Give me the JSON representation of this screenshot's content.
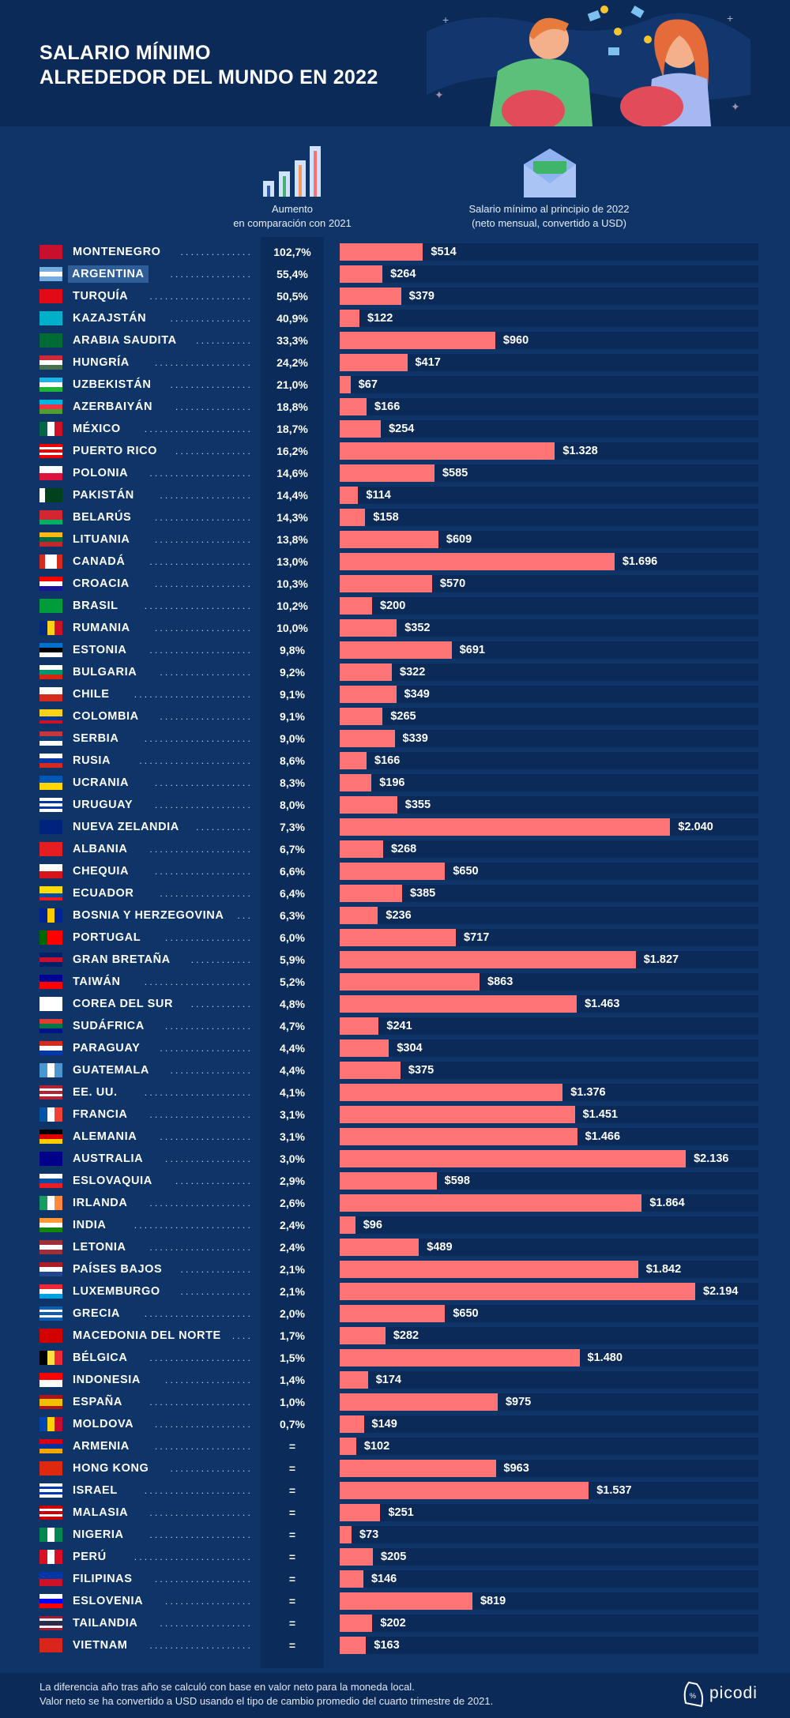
{
  "header": {
    "title_line1": "SALARIO MÍNIMO",
    "title_line2": "ALREDEDOR DEL MUNDO EN 2022"
  },
  "columns": {
    "increase_line1": "Aumento",
    "increase_line2": "en comparación con 2021",
    "salary_line1": "Salario mínimo al principio de 2022",
    "salary_line2": "(neto mensual, convertido a USD)"
  },
  "colors": {
    "background": "#0f3468",
    "header": "#0c2a57",
    "bar": "#ff7474",
    "track": "#0b2a58",
    "highlight": "#2e5d98"
  },
  "footer": {
    "note1": "La diferencia año tras año se calculó con base en valor neto para la moneda local.",
    "note2": "Valor neto se ha convertido a USD usando el tipo de cambio promedio del cuarto trimestre de 2021.",
    "logo": "picodi"
  },
  "chart_data": {
    "type": "bar",
    "orientation": "horizontal",
    "xlabel": "Salario mínimo al principio de 2022 (neto mensual, convertido a USD)",
    "highlighted": "ARGENTINA",
    "rows": [
      {
        "country": "MONTENEGRO",
        "increase": "102,7%",
        "salary": 514,
        "label": "$514",
        "flag": [
          "#c8102e"
        ],
        "fo": "v"
      },
      {
        "country": "ARGENTINA",
        "increase": "55,4%",
        "salary": 264,
        "label": "$264",
        "flag": [
          "#74acdf",
          "#ffffff",
          "#74acdf"
        ],
        "fo": "h"
      },
      {
        "country": "TURQUÍA",
        "increase": "50,5%",
        "salary": 379,
        "label": "$379",
        "flag": [
          "#e30a17"
        ],
        "fo": "v"
      },
      {
        "country": "KAZAJSTÁN",
        "increase": "40,9%",
        "salary": 122,
        "label": "$122",
        "flag": [
          "#00afca"
        ],
        "fo": "v"
      },
      {
        "country": "ARABIA SAUDITA",
        "increase": "33,3%",
        "salary": 960,
        "label": "$960",
        "flag": [
          "#006c35"
        ],
        "fo": "v"
      },
      {
        "country": "HUNGRÍA",
        "increase": "24,2%",
        "salary": 417,
        "label": "$417",
        "flag": [
          "#ce2939",
          "#ffffff",
          "#477050"
        ],
        "fo": "h"
      },
      {
        "country": "UZBEKISTÁN",
        "increase": "21,0%",
        "salary": 67,
        "label": "$67",
        "flag": [
          "#1eb5e5",
          "#ffffff",
          "#1eb53a"
        ],
        "fo": "h"
      },
      {
        "country": "AZERBAIYÁN",
        "increase": "18,8%",
        "salary": 166,
        "label": "$166",
        "flag": [
          "#00b5e2",
          "#ef3340",
          "#509e2f"
        ],
        "fo": "h"
      },
      {
        "country": "MÉXICO",
        "increase": "18,7%",
        "salary": 254,
        "label": "$254",
        "flag": [
          "#006847",
          "#ffffff",
          "#ce1126"
        ],
        "fo": "v"
      },
      {
        "country": "PUERTO RICO",
        "increase": "16,2%",
        "salary": 1328,
        "label": "$1.328",
        "flag": [
          "#ed0000",
          "#ffffff",
          "#ed0000",
          "#ffffff",
          "#ed0000"
        ],
        "fo": "h"
      },
      {
        "country": "POLONIA",
        "increase": "14,6%",
        "salary": 585,
        "label": "$585",
        "flag": [
          "#ffffff",
          "#dc143c"
        ],
        "fo": "h"
      },
      {
        "country": "PAKISTÁN",
        "increase": "14,4%",
        "salary": 114,
        "label": "$114",
        "flag": [
          "#ffffff",
          "#01411c",
          "#01411c",
          "#01411c"
        ],
        "fo": "v"
      },
      {
        "country": "BELARÚS",
        "increase": "14,3%",
        "salary": 158,
        "label": "$158",
        "flag": [
          "#d22730",
          "#d22730",
          "#00af66"
        ],
        "fo": "h"
      },
      {
        "country": "LITUANIA",
        "increase": "13,8%",
        "salary": 609,
        "label": "$609",
        "flag": [
          "#fdb913",
          "#006a44",
          "#c1272d"
        ],
        "fo": "h"
      },
      {
        "country": "CANADÁ",
        "increase": "13,0%",
        "salary": 1696,
        "label": "$1.696",
        "flag": [
          "#d52b1e",
          "#ffffff",
          "#ffffff",
          "#d52b1e"
        ],
        "fo": "v"
      },
      {
        "country": "CROACIA",
        "increase": "10,3%",
        "salary": 570,
        "label": "$570",
        "flag": [
          "#ff0000",
          "#ffffff",
          "#171796"
        ],
        "fo": "h"
      },
      {
        "country": "BRASIL",
        "increase": "10,2%",
        "salary": 200,
        "label": "$200",
        "flag": [
          "#009c3b"
        ],
        "fo": "v"
      },
      {
        "country": "RUMANIA",
        "increase": "10,0%",
        "salary": 352,
        "label": "$352",
        "flag": [
          "#002b7f",
          "#fcd116",
          "#ce1126"
        ],
        "fo": "v"
      },
      {
        "country": "ESTONIA",
        "increase": "9,8%",
        "salary": 691,
        "label": "$691",
        "flag": [
          "#0072ce",
          "#000000",
          "#ffffff"
        ],
        "fo": "h"
      },
      {
        "country": "BULGARIA",
        "increase": "9,2%",
        "salary": 322,
        "label": "$322",
        "flag": [
          "#ffffff",
          "#00966e",
          "#d62612"
        ],
        "fo": "h"
      },
      {
        "country": "CHILE",
        "increase": "9,1%",
        "salary": 349,
        "label": "$349",
        "flag": [
          "#ffffff",
          "#d52b1e"
        ],
        "fo": "h"
      },
      {
        "country": "COLOMBIA",
        "increase": "9,1%",
        "salary": 265,
        "label": "$265",
        "flag": [
          "#fcd116",
          "#fcd116",
          "#003893",
          "#ce1126"
        ],
        "fo": "h"
      },
      {
        "country": "SERBIA",
        "increase": "9,0%",
        "salary": 339,
        "label": "$339",
        "flag": [
          "#c6363c",
          "#0c4076",
          "#ffffff"
        ],
        "fo": "h"
      },
      {
        "country": "RUSIA",
        "increase": "8,6%",
        "salary": 166,
        "label": "$166",
        "flag": [
          "#ffffff",
          "#0039a6",
          "#d52b1e"
        ],
        "fo": "h"
      },
      {
        "country": "UCRANIA",
        "increase": "8,3%",
        "salary": 196,
        "label": "$196",
        "flag": [
          "#0057b7",
          "#ffd700"
        ],
        "fo": "h"
      },
      {
        "country": "URUGUAY",
        "increase": "8,0%",
        "salary": 355,
        "label": "$355",
        "flag": [
          "#ffffff",
          "#0038a8",
          "#ffffff",
          "#0038a8",
          "#ffffff"
        ],
        "fo": "h"
      },
      {
        "country": "NUEVA ZELANDIA",
        "increase": "7,3%",
        "salary": 2040,
        "label": "$2.040",
        "flag": [
          "#00247d"
        ],
        "fo": "v"
      },
      {
        "country": "ALBANIA",
        "increase": "6,7%",
        "salary": 268,
        "label": "$268",
        "flag": [
          "#e41e20"
        ],
        "fo": "v"
      },
      {
        "country": "CHEQUIA",
        "increase": "6,6%",
        "salary": 650,
        "label": "$650",
        "flag": [
          "#ffffff",
          "#d7141a"
        ],
        "fo": "h"
      },
      {
        "country": "ECUADOR",
        "increase": "6,4%",
        "salary": 385,
        "label": "$385",
        "flag": [
          "#ffdd00",
          "#ffdd00",
          "#034ea2",
          "#ed1c24"
        ],
        "fo": "h"
      },
      {
        "country": "BOSNIA Y HERZEGOVINA",
        "increase": "6,3%",
        "salary": 236,
        "label": "$236",
        "flag": [
          "#002395",
          "#fecb00",
          "#002395"
        ],
        "fo": "v"
      },
      {
        "country": "PORTUGAL",
        "increase": "6,0%",
        "salary": 717,
        "label": "$717",
        "flag": [
          "#006600",
          "#ff0000",
          "#ff0000"
        ],
        "fo": "v"
      },
      {
        "country": "GRAN BRETAÑA",
        "increase": "5,9%",
        "salary": 1827,
        "label": "$1.827",
        "flag": [
          "#012169",
          "#c8102e",
          "#012169"
        ],
        "fo": "h"
      },
      {
        "country": "TAIWÁN",
        "increase": "5,2%",
        "salary": 863,
        "label": "$863",
        "flag": [
          "#000095",
          "#fe0000"
        ],
        "fo": "h"
      },
      {
        "country": "COREA DEL SUR",
        "increase": "4,8%",
        "salary": 1463,
        "label": "$1.463",
        "flag": [
          "#ffffff"
        ],
        "fo": "v"
      },
      {
        "country": "SUDÁFRICA",
        "increase": "4,7%",
        "salary": 241,
        "label": "$241",
        "flag": [
          "#e03c31",
          "#007749",
          "#001489"
        ],
        "fo": "h"
      },
      {
        "country": "PARAGUAY",
        "increase": "4,4%",
        "salary": 304,
        "label": "$304",
        "flag": [
          "#d52b1e",
          "#ffffff",
          "#0038a8"
        ],
        "fo": "h"
      },
      {
        "country": "GUATEMALA",
        "increase": "4,4%",
        "salary": 375,
        "label": "$375",
        "flag": [
          "#4997d0",
          "#ffffff",
          "#4997d0"
        ],
        "fo": "v"
      },
      {
        "country": "EE. UU.",
        "increase": "4,1%",
        "salary": 1376,
        "label": "$1.376",
        "flag": [
          "#b22234",
          "#ffffff",
          "#b22234",
          "#ffffff",
          "#b22234"
        ],
        "fo": "h"
      },
      {
        "country": "FRANCIA",
        "increase": "3,1%",
        "salary": 1451,
        "label": "$1.451",
        "flag": [
          "#0055a4",
          "#ffffff",
          "#ef4135"
        ],
        "fo": "v"
      },
      {
        "country": "ALEMANIA",
        "increase": "3,1%",
        "salary": 1466,
        "label": "$1.466",
        "flag": [
          "#000000",
          "#dd0000",
          "#ffce00"
        ],
        "fo": "h"
      },
      {
        "country": "AUSTRALIA",
        "increase": "3,0%",
        "salary": 2136,
        "label": "$2.136",
        "flag": [
          "#00008b"
        ],
        "fo": "v"
      },
      {
        "country": "ESLOVAQUIA",
        "increase": "2,9%",
        "salary": 598,
        "label": "$598",
        "flag": [
          "#ffffff",
          "#0b4ea2",
          "#ee1c25"
        ],
        "fo": "h"
      },
      {
        "country": "IRLANDA",
        "increase": "2,6%",
        "salary": 1864,
        "label": "$1.864",
        "flag": [
          "#169b62",
          "#ffffff",
          "#ff883e"
        ],
        "fo": "v"
      },
      {
        "country": "INDIA",
        "increase": "2,4%",
        "salary": 96,
        "label": "$96",
        "flag": [
          "#ff9933",
          "#ffffff",
          "#138808"
        ],
        "fo": "h"
      },
      {
        "country": "LETONIA",
        "increase": "2,4%",
        "salary": 489,
        "label": "$489",
        "flag": [
          "#9e3039",
          "#ffffff",
          "#9e3039"
        ],
        "fo": "h"
      },
      {
        "country": "PAÍSES BAJOS",
        "increase": "2,1%",
        "salary": 1842,
        "label": "$1.842",
        "flag": [
          "#ae1c28",
          "#ffffff",
          "#21468b"
        ],
        "fo": "h"
      },
      {
        "country": "LUXEMBURGO",
        "increase": "2,1%",
        "salary": 2194,
        "label": "$2.194",
        "flag": [
          "#ed2939",
          "#ffffff",
          "#00a1de"
        ],
        "fo": "h"
      },
      {
        "country": "GRECIA",
        "increase": "2,0%",
        "salary": 650,
        "label": "$650",
        "flag": [
          "#0d5eaf",
          "#ffffff",
          "#0d5eaf",
          "#ffffff",
          "#0d5eaf"
        ],
        "fo": "h"
      },
      {
        "country": "MACEDONIA DEL NORTE",
        "increase": "1,7%",
        "salary": 282,
        "label": "$282",
        "flag": [
          "#d20000"
        ],
        "fo": "v"
      },
      {
        "country": "BÉLGICA",
        "increase": "1,5%",
        "salary": 1480,
        "label": "$1.480",
        "flag": [
          "#000000",
          "#fae042",
          "#ed2939"
        ],
        "fo": "v"
      },
      {
        "country": "INDONESIA",
        "increase": "1,4%",
        "salary": 174,
        "label": "$174",
        "flag": [
          "#ff0000",
          "#ffffff"
        ],
        "fo": "h"
      },
      {
        "country": "ESPAÑA",
        "increase": "1,0%",
        "salary": 975,
        "label": "$975",
        "flag": [
          "#aa151b",
          "#f1bf00",
          "#f1bf00",
          "#aa151b"
        ],
        "fo": "h"
      },
      {
        "country": "MOLDOVA",
        "increase": "0,7%",
        "salary": 149,
        "label": "$149",
        "flag": [
          "#0046ae",
          "#ffd200",
          "#cc092f"
        ],
        "fo": "v"
      },
      {
        "country": "ARMENIA",
        "increase": "=",
        "salary": 102,
        "label": "$102",
        "flag": [
          "#d90012",
          "#0033a0",
          "#f2a800"
        ],
        "fo": "h"
      },
      {
        "country": "HONG KONG",
        "increase": "=",
        "salary": 963,
        "label": "$963",
        "flag": [
          "#de2910"
        ],
        "fo": "v"
      },
      {
        "country": "ISRAEL",
        "increase": "=",
        "salary": 1537,
        "label": "$1.537",
        "flag": [
          "#ffffff",
          "#0038b8",
          "#ffffff",
          "#0038b8",
          "#ffffff"
        ],
        "fo": "h"
      },
      {
        "country": "MALASIA",
        "increase": "=",
        "salary": 251,
        "label": "$251",
        "flag": [
          "#cc0001",
          "#ffffff",
          "#cc0001",
          "#ffffff",
          "#cc0001"
        ],
        "fo": "h"
      },
      {
        "country": "NIGERIA",
        "increase": "=",
        "salary": 73,
        "label": "$73",
        "flag": [
          "#008751",
          "#ffffff",
          "#008751"
        ],
        "fo": "v"
      },
      {
        "country": "PERÚ",
        "increase": "=",
        "salary": 205,
        "label": "$205",
        "flag": [
          "#d91023",
          "#ffffff",
          "#d91023"
        ],
        "fo": "v"
      },
      {
        "country": "FILIPINAS",
        "increase": "=",
        "salary": 146,
        "label": "$146",
        "flag": [
          "#0038a8",
          "#ce1126"
        ],
        "fo": "h"
      },
      {
        "country": "ESLOVENIA",
        "increase": "=",
        "salary": 819,
        "label": "$819",
        "flag": [
          "#ffffff",
          "#0000ff",
          "#ff0000"
        ],
        "fo": "h"
      },
      {
        "country": "TAILANDIA",
        "increase": "=",
        "salary": 202,
        "label": "$202",
        "flag": [
          "#a51931",
          "#f4f5f8",
          "#2d2a4a",
          "#2d2a4a",
          "#f4f5f8",
          "#a51931"
        ],
        "fo": "h"
      },
      {
        "country": "VIETNAM",
        "increase": "=",
        "salary": 163,
        "label": "$163",
        "flag": [
          "#da251d"
        ],
        "fo": "v"
      }
    ]
  }
}
